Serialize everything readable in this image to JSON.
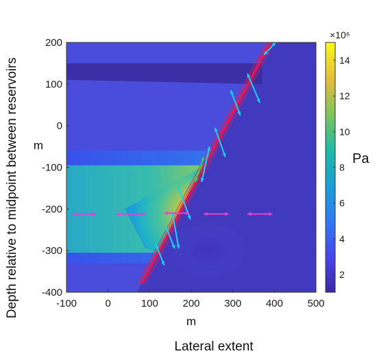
{
  "chart_data": {
    "type": "heatmap",
    "xlabel": "m",
    "ylabel": "m",
    "outer_xlabel": "Lateral extent",
    "outer_ylabel": "Depth relative to midpoint between reservoirs",
    "xlim": [
      -100,
      500
    ],
    "ylim": [
      -400,
      200
    ],
    "x_ticks": [
      -100,
      0,
      100,
      200,
      300,
      400,
      500
    ],
    "y_ticks": [
      200,
      100,
      0,
      -100,
      -200,
      -300,
      -400
    ],
    "colorbar": {
      "label": "Pa",
      "exponent_label": "×10⁶",
      "range": [
        1,
        15
      ],
      "ticks": [
        2,
        4,
        6,
        8,
        10,
        12,
        14
      ],
      "colormap": "parula"
    },
    "fault_line": {
      "x": [
        80,
        390
      ],
      "y": [
        -380,
        200
      ],
      "color": "#e8174f"
    },
    "arrows_cyan": [
      {
        "x": [
          375,
          403
        ],
        "y": [
          170,
          200
        ]
      },
      {
        "x": [
          335,
          365
        ],
        "y": [
          125,
          55
        ]
      },
      {
        "x": [
          295,
          318
        ],
        "y": [
          85,
          25
        ]
      },
      {
        "x": [
          257,
          282
        ],
        "y": [
          -5,
          -75
        ]
      },
      {
        "x": [
          225,
          244
        ],
        "y": [
          -135,
          -50
        ]
      },
      {
        "x": [
          168,
          198
        ],
        "y": [
          -145,
          -225
        ]
      },
      {
        "x": [
          154,
          170
        ],
        "y": [
          -205,
          -295
        ]
      },
      {
        "x": [
          140,
          160
        ],
        "y": [
          -245,
          -295
        ]
      },
      {
        "x": [
          115,
          135
        ],
        "y": [
          -285,
          -335
        ]
      }
    ],
    "arrows_magenta": [
      {
        "x": [
          -85,
          -30
        ],
        "y": [
          -212,
          -212
        ]
      },
      {
        "x": [
          20,
          90
        ],
        "y": [
          -212,
          -212
        ]
      },
      {
        "x": [
          135,
          195
        ],
        "y": [
          -210,
          -210
        ]
      },
      {
        "x": [
          230,
          290
        ],
        "y": [
          -212,
          -212
        ]
      },
      {
        "x": [
          335,
          395
        ],
        "y": [
          -212,
          -212
        ]
      }
    ],
    "arrow_green": {
      "x": [
        210,
        230
      ],
      "y": [
        -135,
        -75
      ]
    }
  }
}
